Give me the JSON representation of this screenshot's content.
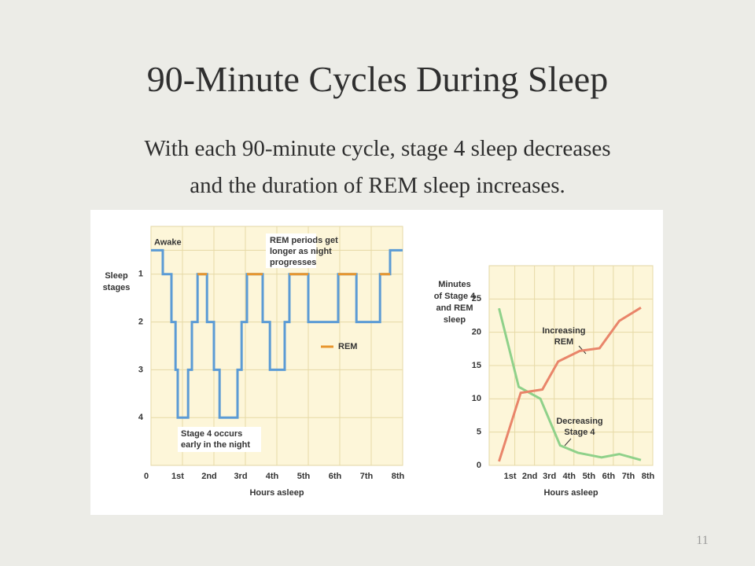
{
  "slide": {
    "title": "90-Minute Cycles During Sleep",
    "subtitle": [
      "With each 90-minute cycle, stage 4 sleep decreases",
      "and the duration of REM sleep increases."
    ],
    "page_number": "11"
  },
  "chart_data": [
    {
      "type": "line",
      "ylabel": [
        "Sleep",
        "stages"
      ],
      "xlabel": "Hours asleep",
      "xlim": [
        0,
        8
      ],
      "ylim": [
        5,
        0
      ],
      "xticks": [
        0,
        {
          "value": 1,
          "label": "1st"
        },
        {
          "value": 2,
          "label": "2nd"
        },
        {
          "value": 3,
          "label": "3rd"
        },
        {
          "value": 4,
          "label": "4th"
        },
        {
          "value": 5,
          "label": "5th"
        },
        {
          "value": 6,
          "label": "6th"
        },
        {
          "value": 7,
          "label": "7th"
        },
        {
          "value": 8,
          "label": "8th"
        }
      ],
      "yticks": [
        {
          "value": 0.5,
          "label": "Awake"
        },
        1,
        2,
        3,
        4
      ],
      "grid": true,
      "legend": "right",
      "annotations": [
        [
          "REM periods get",
          "longer as night",
          "progresses"
        ],
        [
          "Stage 4 occurs",
          "early in the night"
        ]
      ],
      "series": [
        {
          "color": "#5b9bd5",
          "x": [
            0,
            0.375,
            0.375,
            0.65,
            0.65,
            0.78,
            0.78,
            0.85,
            0.85,
            1.18,
            1.18,
            1.3,
            1.3,
            1.48,
            1.48,
            1.78,
            1.78,
            2.0,
            2.0,
            2.18,
            2.18,
            2.75,
            2.75,
            2.88,
            2.88,
            3.05,
            3.05,
            3.55,
            3.55,
            3.78,
            3.78,
            4.25,
            4.25,
            4.4,
            4.4,
            5.0,
            5.0,
            5.95,
            5.95,
            6.53,
            6.53,
            7.28,
            7.28,
            7.6,
            7.6,
            8
          ],
          "values": [
            0.5,
            0.5,
            1,
            1,
            2,
            2,
            3,
            3,
            4,
            4,
            3,
            3,
            2,
            2,
            1,
            1,
            2,
            2,
            3,
            3,
            4,
            4,
            3,
            3,
            2,
            2,
            1,
            1,
            2,
            2,
            3,
            3,
            2,
            2,
            1,
            1,
            2,
            2,
            1,
            1,
            2,
            2,
            1,
            1,
            0.5,
            0.5
          ]
        },
        {
          "name": "REM",
          "color": "#e8962e",
          "x": [
            1.48,
            1.78,
            null,
            3.05,
            3.55,
            null,
            4.4,
            5.0,
            null,
            5.95,
            6.53,
            null,
            7.28,
            7.6
          ],
          "values": [
            1,
            1,
            null,
            1,
            1,
            null,
            1,
            1,
            null,
            1,
            1,
            null,
            1,
            1
          ]
        }
      ]
    },
    {
      "type": "line",
      "ylabel": [
        "Minutes",
        "of Stage 4",
        "and REM",
        "sleep"
      ],
      "xlabel": "Hours asleep",
      "xlim": [
        -0.3,
        8
      ],
      "ylim": [
        0,
        30
      ],
      "xticks": [
        {
          "value": 1,
          "label": "1st"
        },
        {
          "value": 2,
          "label": "2nd"
        },
        {
          "value": 3,
          "label": "3rd"
        },
        {
          "value": 4,
          "label": "4th"
        },
        {
          "value": 5,
          "label": "5th"
        },
        {
          "value": 6,
          "label": "6th"
        },
        {
          "value": 7,
          "label": "7th"
        },
        {
          "value": 8,
          "label": "8th"
        }
      ],
      "yticks": [
        0,
        5,
        10,
        15,
        20,
        25
      ],
      "grid": true,
      "annotations": [
        [
          "Increasing",
          "REM"
        ],
        [
          "Decreasing",
          "Stage 4"
        ]
      ],
      "series": [
        {
          "color": "#8fd18a",
          "x": [
            0.2,
            1.2,
            2.3,
            3.3,
            4.2,
            5.4,
            6.3,
            7.4
          ],
          "values": [
            23.6,
            11.8,
            10,
            3,
            1.9,
            1.2,
            1.7,
            0.8
          ]
        },
        {
          "color": "#e9856a",
          "x": [
            0.2,
            1.3,
            2.4,
            3.2,
            4.3,
            5.3,
            6.3,
            7.4
          ],
          "values": [
            0.6,
            10.9,
            11.4,
            15.6,
            17.2,
            17.6,
            21.7,
            23.7
          ]
        }
      ]
    }
  ]
}
